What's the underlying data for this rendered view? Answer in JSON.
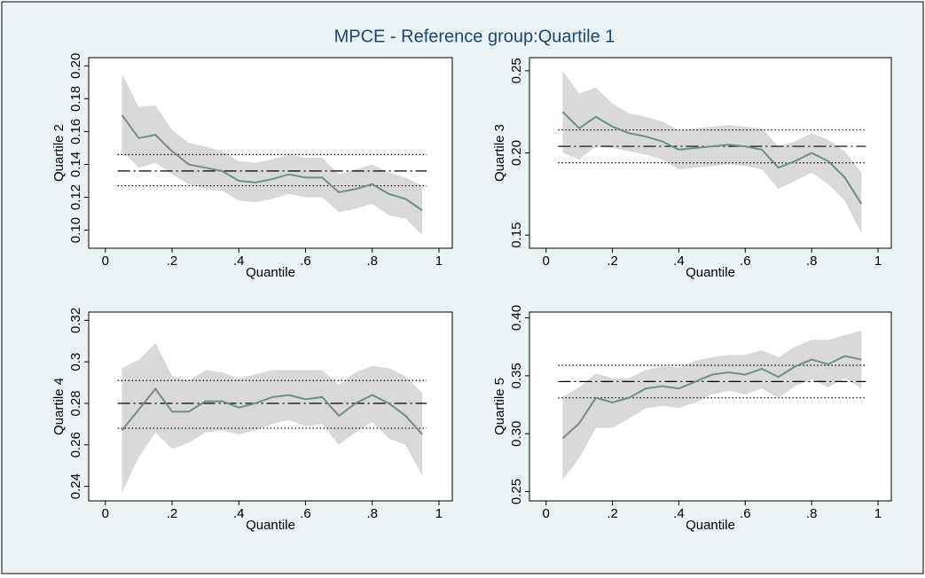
{
  "title": "MPCE - Reference group:Quartile 1",
  "chart_data": [
    {
      "type": "line",
      "ylabel": "Quartile 2",
      "xlabel": "Quantile",
      "x": [
        0.05,
        0.1,
        0.15,
        0.2,
        0.25,
        0.3,
        0.35,
        0.4,
        0.45,
        0.5,
        0.55,
        0.6,
        0.65,
        0.7,
        0.75,
        0.8,
        0.85,
        0.9,
        0.95
      ],
      "series": [
        {
          "color": "#6d8f85",
          "values": [
            0.17,
            0.156,
            0.158,
            0.148,
            0.14,
            0.138,
            0.136,
            0.13,
            0.129,
            0.131,
            0.134,
            0.132,
            0.132,
            0.123,
            0.125,
            0.128,
            0.122,
            0.119,
            0.112
          ]
        }
      ],
      "band": {
        "color": "#d9d9d9",
        "upper": [
          0.195,
          0.175,
          0.176,
          0.161,
          0.153,
          0.151,
          0.148,
          0.142,
          0.141,
          0.143,
          0.146,
          0.144,
          0.144,
          0.134,
          0.137,
          0.14,
          0.135,
          0.132,
          0.127
        ],
        "lower": [
          0.148,
          0.138,
          0.141,
          0.134,
          0.128,
          0.125,
          0.124,
          0.118,
          0.117,
          0.119,
          0.122,
          0.12,
          0.12,
          0.111,
          0.113,
          0.116,
          0.109,
          0.107,
          0.097
        ]
      },
      "hlines": [
        {
          "value": 0.136,
          "style": "dashdot"
        },
        {
          "value": 0.146,
          "style": "dotted"
        },
        {
          "value": 0.127,
          "style": "dotted"
        }
      ],
      "xlim": [
        -0.05,
        1.04
      ],
      "ylim": [
        0.089,
        0.205
      ],
      "xticks": [
        0,
        {
          "value": 0.2,
          "label": ".2"
        },
        {
          "value": 0.4,
          "label": ".4"
        },
        {
          "value": 0.6,
          "label": ".6"
        },
        {
          "value": 0.8,
          "label": ".8"
        },
        1
      ],
      "yticks": [
        {
          "value": 0.1,
          "label": "0.10"
        },
        0.12,
        0.14,
        0.16,
        0.18,
        {
          "value": 0.2,
          "label": "0.20"
        }
      ]
    },
    {
      "type": "line",
      "ylabel": "Quartile 3",
      "xlabel": "Quantile",
      "x": [
        0.05,
        0.1,
        0.15,
        0.2,
        0.25,
        0.3,
        0.35,
        0.4,
        0.45,
        0.5,
        0.55,
        0.6,
        0.65,
        0.7,
        0.75,
        0.8,
        0.85,
        0.9,
        0.95
      ],
      "series": [
        {
          "color": "#6d8f85",
          "values": [
            0.225,
            0.215,
            0.222,
            0.216,
            0.212,
            0.21,
            0.207,
            0.202,
            0.203,
            0.204,
            0.205,
            0.204,
            0.202,
            0.191,
            0.195,
            0.2,
            0.195,
            0.185,
            0.169
          ]
        }
      ],
      "band": {
        "color": "#d9d9d9",
        "upper": [
          0.25,
          0.236,
          0.24,
          0.23,
          0.224,
          0.222,
          0.219,
          0.214,
          0.215,
          0.216,
          0.217,
          0.216,
          0.215,
          0.204,
          0.207,
          0.212,
          0.208,
          0.201,
          0.188
        ],
        "lower": [
          0.2,
          0.196,
          0.204,
          0.203,
          0.201,
          0.199,
          0.196,
          0.19,
          0.191,
          0.192,
          0.193,
          0.192,
          0.19,
          0.178,
          0.183,
          0.188,
          0.181,
          0.171,
          0.151
        ]
      },
      "hlines": [
        {
          "value": 0.204,
          "style": "dashdot"
        },
        {
          "value": 0.214,
          "style": "dotted"
        },
        {
          "value": 0.194,
          "style": "dotted"
        }
      ],
      "xlim": [
        -0.05,
        1.04
      ],
      "ylim": [
        0.142,
        0.258
      ],
      "xticks": [
        0,
        {
          "value": 0.2,
          "label": ".2"
        },
        {
          "value": 0.4,
          "label": ".4"
        },
        {
          "value": 0.6,
          "label": ".6"
        },
        {
          "value": 0.8,
          "label": ".8"
        },
        1
      ],
      "yticks": [
        0.15,
        {
          "value": 0.2,
          "label": "0.20"
        },
        0.25
      ]
    },
    {
      "type": "line",
      "ylabel": "Quartile 4",
      "xlabel": "Quantile",
      "x": [
        0.05,
        0.1,
        0.15,
        0.2,
        0.25,
        0.3,
        0.35,
        0.4,
        0.45,
        0.5,
        0.55,
        0.6,
        0.65,
        0.7,
        0.75,
        0.8,
        0.85,
        0.9,
        0.95
      ],
      "series": [
        {
          "color": "#6d8f85",
          "values": [
            0.267,
            0.277,
            0.287,
            0.276,
            0.276,
            0.281,
            0.281,
            0.278,
            0.28,
            0.283,
            0.284,
            0.282,
            0.283,
            0.274,
            0.28,
            0.284,
            0.28,
            0.274,
            0.265
          ]
        }
      ],
      "band": {
        "color": "#d9d9d9",
        "upper": [
          0.297,
          0.301,
          0.309,
          0.293,
          0.291,
          0.296,
          0.295,
          0.292,
          0.294,
          0.296,
          0.296,
          0.296,
          0.296,
          0.289,
          0.295,
          0.298,
          0.297,
          0.293,
          0.285
        ],
        "lower": [
          0.237,
          0.254,
          0.266,
          0.258,
          0.261,
          0.266,
          0.267,
          0.265,
          0.267,
          0.27,
          0.272,
          0.269,
          0.27,
          0.26,
          0.266,
          0.271,
          0.263,
          0.26,
          0.245
        ]
      },
      "hlines": [
        {
          "value": 0.28,
          "style": "dashdot"
        },
        {
          "value": 0.291,
          "style": "dotted"
        },
        {
          "value": 0.268,
          "style": "dotted"
        }
      ],
      "xlim": [
        -0.05,
        1.04
      ],
      "ylim": [
        0.233,
        0.324
      ],
      "xticks": [
        0,
        {
          "value": 0.2,
          "label": ".2"
        },
        {
          "value": 0.4,
          "label": ".4"
        },
        {
          "value": 0.6,
          "label": ".6"
        },
        {
          "value": 0.8,
          "label": ".8"
        },
        1
      ],
      "yticks": [
        0.24,
        0.26,
        0.28,
        0.3,
        0.32
      ]
    },
    {
      "type": "line",
      "ylabel": "Quartile 5",
      "xlabel": "Quantile",
      "x": [
        0.05,
        0.1,
        0.15,
        0.2,
        0.25,
        0.3,
        0.35,
        0.4,
        0.45,
        0.5,
        0.55,
        0.6,
        0.65,
        0.7,
        0.75,
        0.8,
        0.85,
        0.9,
        0.95
      ],
      "series": [
        {
          "color": "#6d8f85",
          "values": [
            0.296,
            0.309,
            0.331,
            0.327,
            0.331,
            0.339,
            0.341,
            0.339,
            0.345,
            0.351,
            0.353,
            0.351,
            0.356,
            0.349,
            0.358,
            0.364,
            0.36,
            0.367,
            0.364
          ]
        }
      ],
      "band": {
        "color": "#d9d9d9",
        "upper": [
          0.332,
          0.34,
          0.352,
          0.348,
          0.348,
          0.355,
          0.358,
          0.357,
          0.363,
          0.366,
          0.368,
          0.368,
          0.372,
          0.366,
          0.375,
          0.381,
          0.381,
          0.385,
          0.389
        ],
        "lower": [
          0.26,
          0.279,
          0.305,
          0.305,
          0.313,
          0.322,
          0.324,
          0.322,
          0.327,
          0.334,
          0.337,
          0.334,
          0.339,
          0.331,
          0.341,
          0.347,
          0.34,
          0.348,
          0.339
        ]
      },
      "hlines": [
        {
          "value": 0.345,
          "style": "dashdot"
        },
        {
          "value": 0.359,
          "style": "dotted"
        },
        {
          "value": 0.331,
          "style": "dotted"
        }
      ],
      "xlim": [
        -0.05,
        1.04
      ],
      "ylim": [
        0.242,
        0.405
      ],
      "xticks": [
        0,
        {
          "value": 0.2,
          "label": ".2"
        },
        {
          "value": 0.4,
          "label": ".4"
        },
        {
          "value": 0.6,
          "label": ".6"
        },
        {
          "value": 0.8,
          "label": ".8"
        },
        1
      ],
      "yticks": [
        0.25,
        {
          "value": 0.3,
          "label": "0.30"
        },
        0.35,
        {
          "value": 0.4,
          "label": "0.40"
        }
      ]
    }
  ]
}
